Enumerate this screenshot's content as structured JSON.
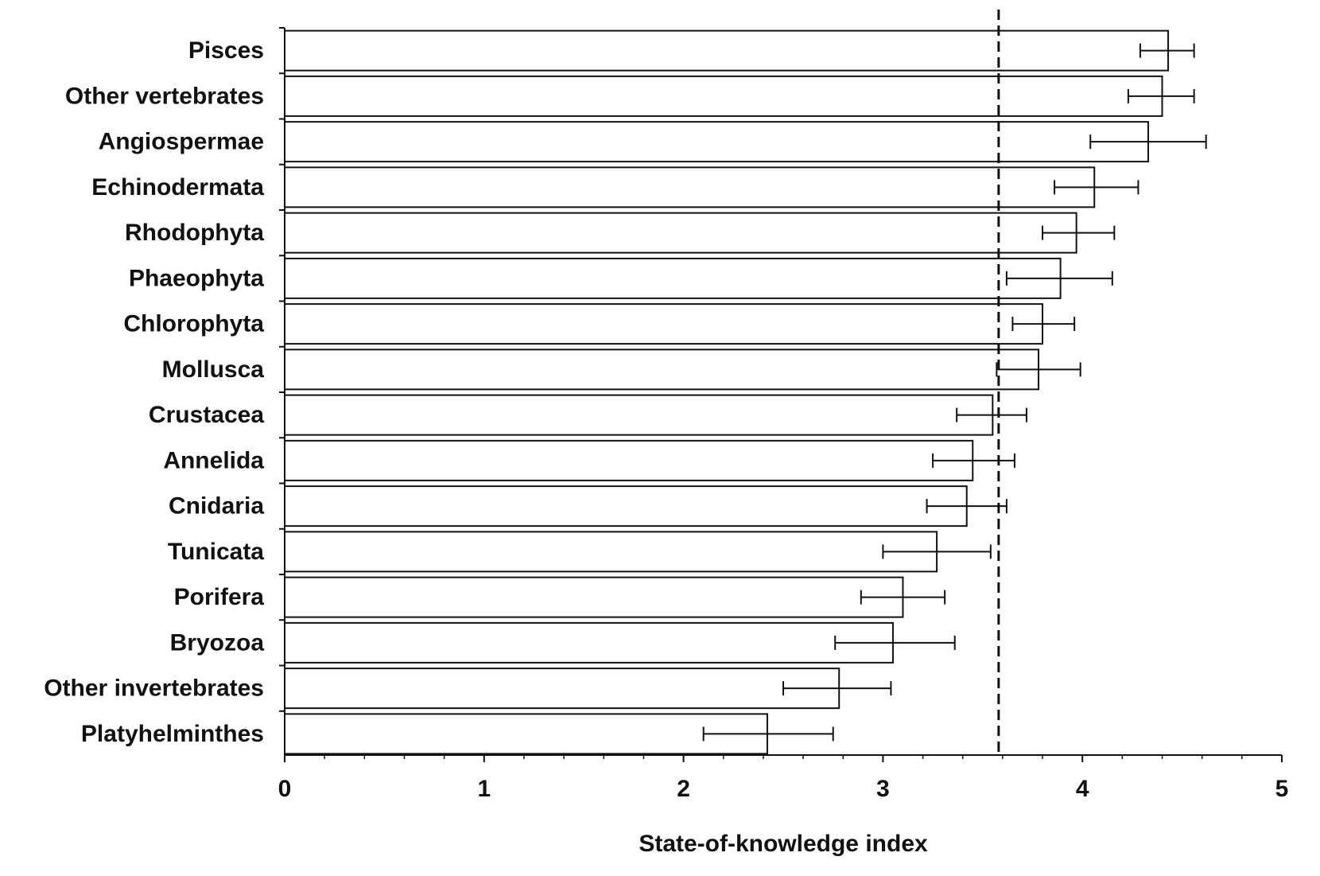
{
  "chart_data": {
    "type": "bar",
    "orientation": "horizontal",
    "title": "",
    "xlabel": "State-of-knowledge index",
    "ylabel": "",
    "xlim": [
      0,
      5
    ],
    "xticks": [
      "0",
      "1",
      "2",
      "3",
      "4",
      "5"
    ],
    "grid": false,
    "legend": "none",
    "reference_line": {
      "x": 3.58,
      "style": "dashed"
    },
    "categories": [
      "Pisces",
      "Other vertebrates",
      "Angiospermae",
      "Echinodermata",
      "Rhodophyta",
      "Phaeophyta",
      "Chlorophyta",
      "Mollusca",
      "Crustacea",
      "Annelida",
      "Cnidaria",
      "Tunicata",
      "Porifera",
      "Bryozoa",
      "Other invertebrates",
      "Platyhelminthes"
    ],
    "values": [
      4.43,
      4.4,
      4.33,
      4.06,
      3.97,
      3.89,
      3.8,
      3.78,
      3.55,
      3.45,
      3.42,
      3.27,
      3.1,
      3.05,
      2.78,
      2.42
    ],
    "error_low": [
      4.29,
      4.23,
      4.04,
      3.86,
      3.8,
      3.62,
      3.65,
      3.57,
      3.37,
      3.25,
      3.22,
      3.0,
      2.89,
      2.76,
      2.5,
      2.1
    ],
    "error_high": [
      4.56,
      4.56,
      4.62,
      4.28,
      4.16,
      4.15,
      3.96,
      3.99,
      3.72,
      3.66,
      3.62,
      3.54,
      3.31,
      3.36,
      3.04,
      2.75
    ],
    "colors": {
      "bar_fill": "#ffffff",
      "bar_stroke": "#111111",
      "axis": "#111111",
      "text": "#111111"
    }
  }
}
